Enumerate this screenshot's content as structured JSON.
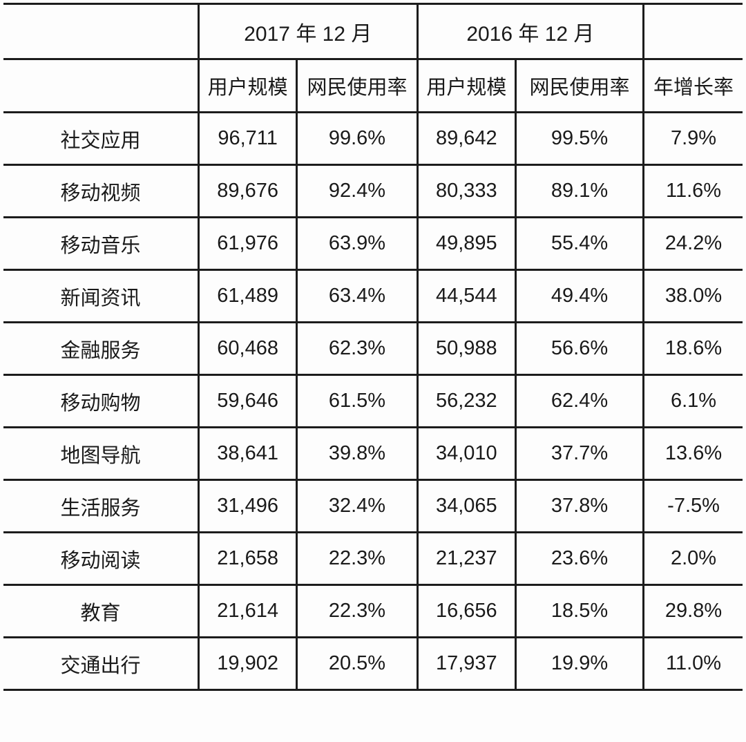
{
  "table": {
    "period_headers": [
      "",
      "2017 年 12 月",
      "2016 年 12 月",
      ""
    ],
    "column_headers": [
      "",
      "用户规模",
      "网民使用率",
      "用户规模",
      "网民使用率",
      "年增长率"
    ],
    "rows": [
      [
        "社交应用",
        "96,711",
        "99.6%",
        "89,642",
        "99.5%",
        "7.9%"
      ],
      [
        "移动视频",
        "89,676",
        "92.4%",
        "80,333",
        "89.1%",
        "11.6%"
      ],
      [
        "移动音乐",
        "61,976",
        "63.9%",
        "49,895",
        "55.4%",
        "24.2%"
      ],
      [
        "新闻资讯",
        "61,489",
        "63.4%",
        "44,544",
        "49.4%",
        "38.0%"
      ],
      [
        "金融服务",
        "60,468",
        "62.3%",
        "50,988",
        "56.6%",
        "18.6%"
      ],
      [
        "移动购物",
        "59,646",
        "61.5%",
        "56,232",
        "62.4%",
        "6.1%"
      ],
      [
        "地图导航",
        "38,641",
        "39.8%",
        "34,010",
        "37.7%",
        "13.6%"
      ],
      [
        "生活服务",
        "31,496",
        "32.4%",
        "34,065",
        "37.8%",
        "-7.5%"
      ],
      [
        "移动阅读",
        "21,658",
        "22.3%",
        "21,237",
        "23.6%",
        "2.0%"
      ],
      [
        "教育",
        "21,614",
        "22.3%",
        "16,656",
        "18.5%",
        "29.8%"
      ],
      [
        "交通出行",
        "19,902",
        "20.5%",
        "17,937",
        "19.9%",
        "11.0%"
      ]
    ]
  },
  "chart_data": {
    "type": "table",
    "column_groups": [
      "2017 年 12 月",
      "2016 年 12 月"
    ],
    "columns": [
      "用户规模",
      "网民使用率",
      "用户规模",
      "网民使用率",
      "年增长率"
    ],
    "categories": [
      "社交应用",
      "移动视频",
      "移动音乐",
      "新闻资讯",
      "金融服务",
      "移动购物",
      "地图导航",
      "生活服务",
      "移动阅读",
      "教育",
      "交通出行"
    ],
    "series": [
      {
        "name": "用户规模 2017 年 12 月",
        "values": [
          96711,
          89676,
          61976,
          61489,
          60468,
          59646,
          38641,
          31496,
          21658,
          21614,
          19902
        ]
      },
      {
        "name": "网民使用率 2017 年 12 月 (%)",
        "values": [
          99.6,
          92.4,
          63.9,
          63.4,
          62.3,
          61.5,
          39.8,
          32.4,
          22.3,
          22.3,
          20.5
        ]
      },
      {
        "name": "用户规模 2016 年 12 月",
        "values": [
          89642,
          80333,
          49895,
          44544,
          50988,
          56232,
          34010,
          34065,
          21237,
          16656,
          17937
        ]
      },
      {
        "name": "网民使用率 2016 年 12 月 (%)",
        "values": [
          99.5,
          89.1,
          55.4,
          49.4,
          56.6,
          62.4,
          37.7,
          37.8,
          23.6,
          18.5,
          19.9
        ]
      },
      {
        "name": "年增长率 (%)",
        "values": [
          7.9,
          11.6,
          24.2,
          38.0,
          18.6,
          6.1,
          13.6,
          -7.5,
          2.0,
          29.8,
          11.0
        ]
      }
    ],
    "title": "",
    "grid": true,
    "legend_position": "none"
  },
  "colors": {
    "border": "#1c1c1c",
    "text": "#1a1a1a",
    "background": "#fdfdfd"
  }
}
